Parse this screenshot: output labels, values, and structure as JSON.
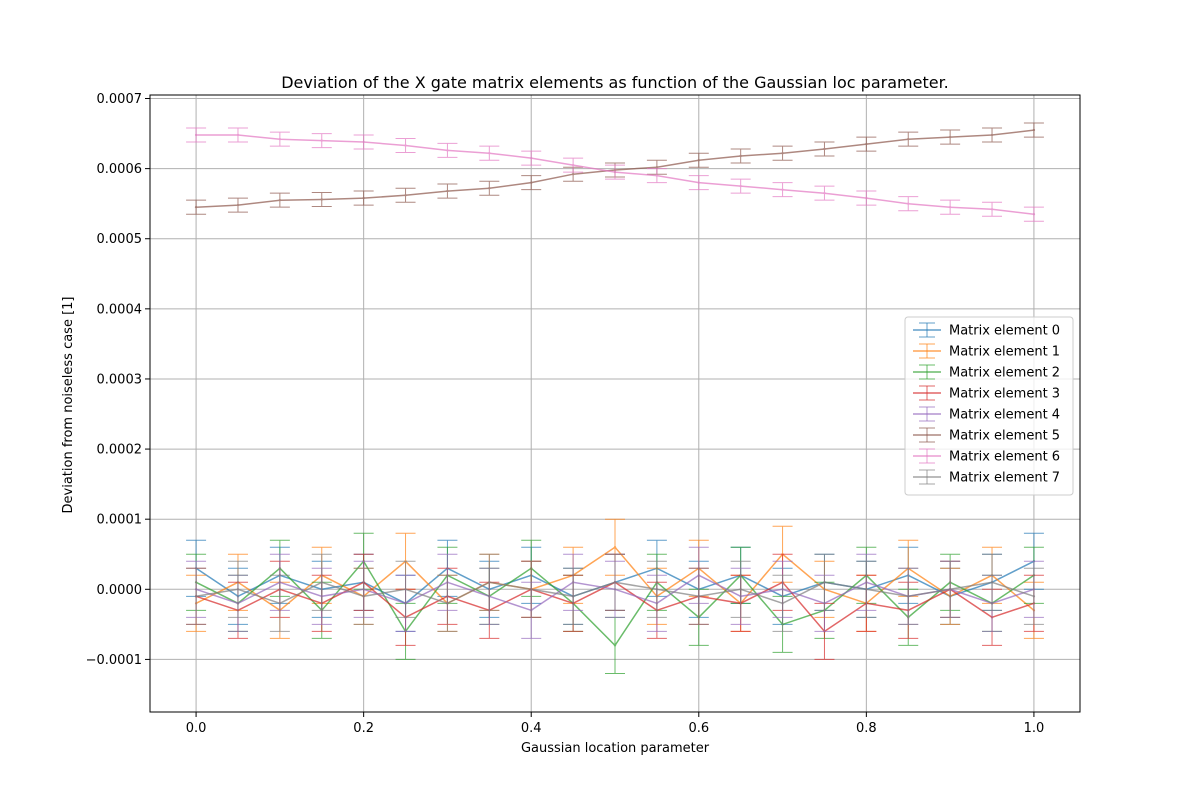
{
  "chart_data": {
    "type": "line",
    "title": "Deviation of the X gate matrix elements as function of the Gaussian loc parameter.",
    "xlabel": "Gaussian location parameter",
    "ylabel": "Deviation from noiseless case [1]",
    "xlim": [
      -0.055,
      1.055
    ],
    "ylim": [
      -0.000175,
      0.000705
    ],
    "xticks": [
      0.0,
      0.2,
      0.4,
      0.6,
      0.8,
      1.0
    ],
    "xtick_labels": [
      "0.0",
      "0.2",
      "0.4",
      "0.6",
      "0.8",
      "1.0"
    ],
    "yticks": [
      -0.0001,
      0.0,
      0.0001,
      0.0002,
      0.0003,
      0.0004,
      0.0005,
      0.0006,
      0.0007
    ],
    "ytick_labels": [
      "−0.0001",
      "0.0000",
      "0.0001",
      "0.0002",
      "0.0003",
      "0.0004",
      "0.0005",
      "0.0006",
      "0.0007"
    ],
    "grid": true,
    "legend_position": "center-right",
    "x": [
      0.0,
      0.05,
      0.1,
      0.15,
      0.2,
      0.25,
      0.3,
      0.35,
      0.4,
      0.45,
      0.5,
      0.55,
      0.6,
      0.65,
      0.7,
      0.75,
      0.8,
      0.85,
      0.9,
      0.95,
      1.0
    ],
    "series": [
      {
        "name": "Matrix element 0",
        "color": "#1f77b4",
        "values": [
          3e-05,
          -1e-05,
          2e-05,
          0.0,
          1e-05,
          -2e-05,
          3e-05,
          0.0,
          2e-05,
          -1e-05,
          1e-05,
          3e-05,
          0.0,
          2e-05,
          -1e-05,
          1e-05,
          0.0,
          2e-05,
          -1e-05,
          1e-05,
          4e-05
        ],
        "err": [
          4e-05,
          4e-05,
          4e-05,
          4e-05,
          4e-05,
          4e-05,
          4e-05,
          4e-05,
          4e-05,
          4e-05,
          4e-05,
          4e-05,
          4e-05,
          4e-05,
          4e-05,
          4e-05,
          4e-05,
          4e-05,
          4e-05,
          4e-05,
          4e-05
        ]
      },
      {
        "name": "Matrix element 1",
        "color": "#ff7f0e",
        "values": [
          -2e-05,
          1e-05,
          -3e-05,
          2e-05,
          -1e-05,
          4e-05,
          -2e-05,
          1e-05,
          0.0,
          2e-05,
          6e-05,
          -1e-05,
          3e-05,
          -2e-05,
          5e-05,
          0.0,
          -2e-05,
          3e-05,
          -1e-05,
          2e-05,
          -3e-05
        ],
        "err": [
          4e-05,
          4e-05,
          4e-05,
          4e-05,
          4e-05,
          4e-05,
          4e-05,
          4e-05,
          4e-05,
          4e-05,
          4e-05,
          4e-05,
          4e-05,
          4e-05,
          4e-05,
          4e-05,
          4e-05,
          4e-05,
          4e-05,
          4e-05,
          4e-05
        ]
      },
      {
        "name": "Matrix element 2",
        "color": "#2ca02c",
        "values": [
          1e-05,
          -2e-05,
          3e-05,
          -3e-05,
          4e-05,
          -6e-05,
          2e-05,
          -1e-05,
          3e-05,
          -2e-05,
          -8e-05,
          1e-05,
          -4e-05,
          2e-05,
          -5e-05,
          -3e-05,
          2e-05,
          -4e-05,
          1e-05,
          -2e-05,
          2e-05
        ],
        "err": [
          4e-05,
          4e-05,
          4e-05,
          4e-05,
          4e-05,
          4e-05,
          4e-05,
          4e-05,
          4e-05,
          4e-05,
          4e-05,
          4e-05,
          4e-05,
          4e-05,
          4e-05,
          4e-05,
          4e-05,
          4e-05,
          4e-05,
          4e-05,
          4e-05
        ]
      },
      {
        "name": "Matrix element 3",
        "color": "#d62728",
        "values": [
          -1e-05,
          -3e-05,
          0.0,
          -2e-05,
          1e-05,
          -4e-05,
          -1e-05,
          -3e-05,
          0.0,
          -2e-05,
          1e-05,
          -3e-05,
          -1e-05,
          -2e-05,
          1e-05,
          -6e-05,
          -2e-05,
          -3e-05,
          0.0,
          -4e-05,
          -2e-05
        ],
        "err": [
          4e-05,
          4e-05,
          4e-05,
          4e-05,
          4e-05,
          4e-05,
          4e-05,
          4e-05,
          4e-05,
          4e-05,
          4e-05,
          4e-05,
          4e-05,
          4e-05,
          4e-05,
          4e-05,
          4e-05,
          4e-05,
          4e-05,
          4e-05,
          4e-05
        ]
      },
      {
        "name": "Matrix element 4",
        "color": "#9467bd",
        "values": [
          0.0,
          -2e-05,
          1e-05,
          -1e-05,
          0.0,
          -2e-05,
          1e-05,
          -1e-05,
          -3e-05,
          1e-05,
          0.0,
          -2e-05,
          2e-05,
          -1e-05,
          0.0,
          -2e-05,
          1e-05,
          -1e-05,
          0.0,
          -2e-05,
          0.0
        ],
        "err": [
          4e-05,
          4e-05,
          4e-05,
          4e-05,
          4e-05,
          4e-05,
          4e-05,
          4e-05,
          4e-05,
          4e-05,
          4e-05,
          4e-05,
          4e-05,
          4e-05,
          4e-05,
          4e-05,
          4e-05,
          4e-05,
          4e-05,
          4e-05,
          4e-05
        ]
      },
      {
        "name": "Matrix element 5",
        "color": "#8c564b",
        "values": [
          0.000545,
          0.000548,
          0.000555,
          0.000556,
          0.000558,
          0.000562,
          0.000568,
          0.000572,
          0.00058,
          0.000592,
          0.000598,
          0.000602,
          0.000612,
          0.000618,
          0.000622,
          0.000628,
          0.000635,
          0.000642,
          0.000645,
          0.000648,
          0.000655
        ],
        "err": [
          1e-05,
          1e-05,
          1e-05,
          1e-05,
          1e-05,
          1e-05,
          1e-05,
          1e-05,
          1e-05,
          1e-05,
          1e-05,
          1e-05,
          1e-05,
          1e-05,
          1e-05,
          1e-05,
          1e-05,
          1e-05,
          1e-05,
          1e-05,
          1e-05
        ]
      },
      {
        "name": "Matrix element 6",
        "color": "#e377c2",
        "values": [
          0.000648,
          0.000648,
          0.000642,
          0.00064,
          0.000638,
          0.000633,
          0.000626,
          0.000622,
          0.000615,
          0.000605,
          0.000595,
          0.00059,
          0.00058,
          0.000575,
          0.00057,
          0.000565,
          0.000558,
          0.00055,
          0.000545,
          0.000542,
          0.000535
        ],
        "err": [
          1e-05,
          1e-05,
          1e-05,
          1e-05,
          1e-05,
          1e-05,
          1e-05,
          1e-05,
          1e-05,
          1e-05,
          1e-05,
          1e-05,
          1e-05,
          1e-05,
          1e-05,
          1e-05,
          1e-05,
          1e-05,
          1e-05,
          1e-05,
          1e-05
        ]
      },
      {
        "name": "Matrix element 7",
        "color": "#7f7f7f",
        "values": [
          -1e-05,
          0.0,
          -2e-05,
          1e-05,
          -1e-05,
          0.0,
          -2e-05,
          1e-05,
          0.0,
          -1e-05,
          1e-05,
          0.0,
          -1e-05,
          0.0,
          -2e-05,
          1e-05,
          0.0,
          -1e-05,
          0.0,
          1e-05,
          -1e-05
        ],
        "err": [
          4e-05,
          4e-05,
          4e-05,
          4e-05,
          4e-05,
          4e-05,
          4e-05,
          4e-05,
          4e-05,
          4e-05,
          4e-05,
          4e-05,
          4e-05,
          4e-05,
          4e-05,
          4e-05,
          4e-05,
          4e-05,
          4e-05,
          4e-05,
          4e-05
        ]
      }
    ]
  }
}
